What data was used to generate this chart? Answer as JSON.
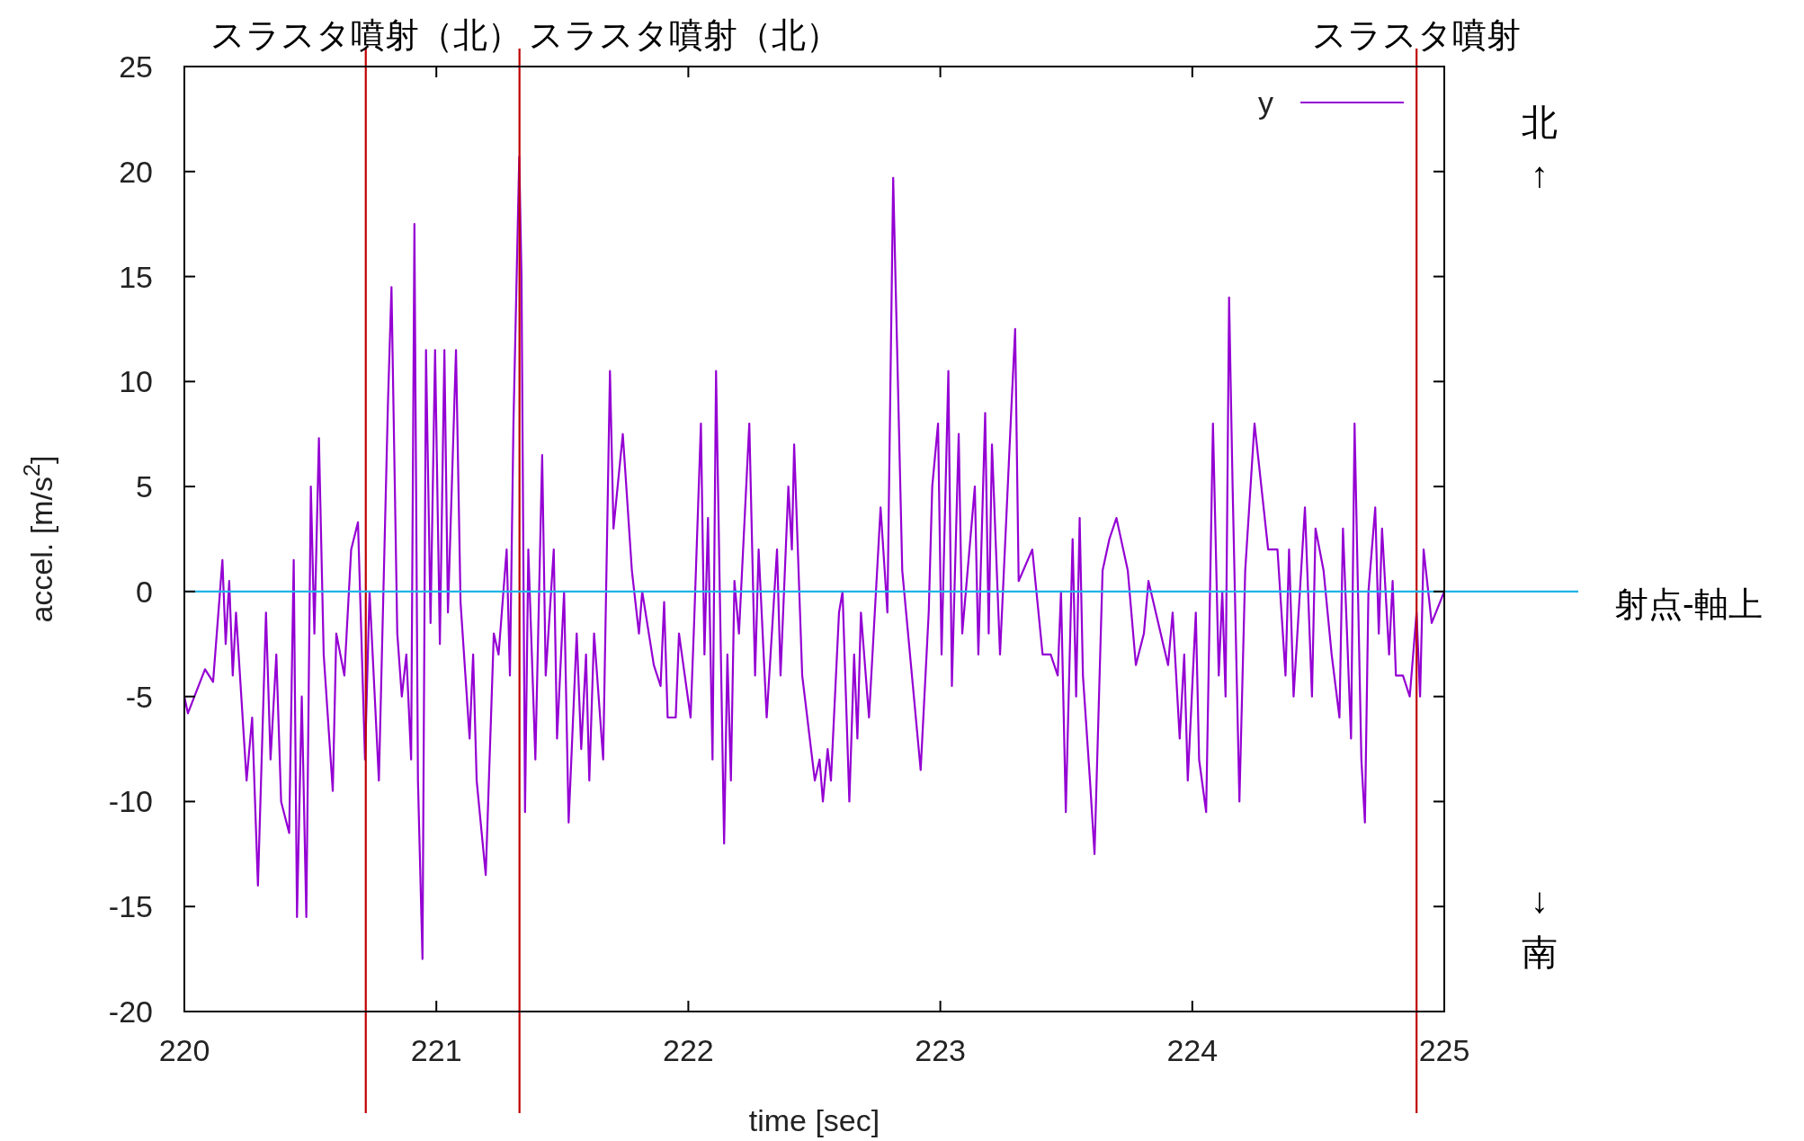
{
  "chart_data": {
    "type": "line",
    "xlabel": "time [sec]",
    "ylabel": "accel. [m/s$^{2}$]",
    "xlim": [
      220,
      225
    ],
    "xticks": [
      220,
      221,
      222,
      223,
      224,
      225
    ],
    "ylim": [
      -20,
      25
    ],
    "yticks": [
      -20,
      -15,
      -10,
      -5,
      0,
      5,
      10,
      15,
      20,
      25
    ],
    "grid": false,
    "legend": "top right",
    "marker": "none",
    "line_style": "solid",
    "series": [
      {
        "name": "y",
        "color": "#9400d3",
        "x": [
          220.0,
          220.014,
          220.082,
          220.114,
          220.151,
          220.164,
          220.178,
          220.192,
          220.205,
          220.247,
          220.269,
          220.292,
          220.324,
          220.342,
          220.365,
          220.384,
          220.416,
          220.434,
          220.447,
          220.466,
          220.484,
          220.502,
          220.516,
          220.534,
          220.553,
          220.589,
          220.603,
          220.635,
          220.662,
          220.689,
          220.717,
          220.735,
          220.772,
          220.808,
          220.822,
          220.845,
          220.863,
          220.881,
          220.9,
          220.913,
          220.927,
          220.945,
          220.959,
          220.977,
          220.995,
          221.014,
          221.032,
          221.046,
          221.078,
          221.096,
          221.132,
          221.146,
          221.16,
          221.196,
          221.228,
          221.247,
          221.279,
          221.292,
          221.306,
          221.329,
          221.338,
          221.352,
          221.365,
          221.393,
          221.42,
          221.434,
          221.466,
          221.479,
          221.507,
          221.525,
          221.557,
          221.575,
          221.594,
          221.607,
          221.626,
          221.662,
          221.689,
          221.703,
          221.74,
          221.776,
          221.804,
          221.817,
          221.863,
          221.89,
          221.904,
          221.918,
          221.95,
          221.963,
          222.009,
          222.023,
          222.05,
          222.064,
          222.078,
          222.096,
          222.11,
          222.142,
          222.155,
          222.169,
          222.183,
          222.201,
          222.242,
          222.265,
          222.279,
          222.311,
          222.352,
          222.366,
          222.397,
          222.411,
          222.42,
          222.452,
          222.502,
          222.521,
          222.534,
          222.553,
          222.566,
          222.598,
          222.612,
          222.639,
          222.658,
          222.671,
          222.685,
          222.717,
          222.763,
          222.79,
          222.813,
          222.822,
          222.849,
          222.922,
          222.954,
          222.968,
          222.991,
          223.005,
          223.032,
          223.046,
          223.073,
          223.087,
          223.137,
          223.151,
          223.178,
          223.192,
          223.205,
          223.237,
          223.283,
          223.297,
          223.311,
          223.365,
          223.406,
          223.438,
          223.466,
          223.479,
          223.498,
          223.525,
          223.539,
          223.553,
          223.566,
          223.594,
          223.612,
          223.644,
          223.671,
          223.699,
          223.744,
          223.776,
          223.808,
          223.826,
          223.904,
          223.922,
          223.95,
          223.968,
          223.982,
          224.014,
          224.027,
          224.055,
          224.082,
          224.105,
          224.119,
          224.132,
          224.146,
          224.16,
          224.187,
          224.21,
          224.247,
          224.301,
          224.338,
          224.37,
          224.384,
          224.402,
          224.447,
          224.475,
          224.489,
          224.521,
          224.553,
          224.584,
          224.598,
          224.63,
          224.644,
          224.671,
          224.685,
          224.699,
          224.726,
          224.74,
          224.753,
          224.781,
          224.795,
          224.808,
          224.836,
          224.863,
          224.89,
          224.904,
          224.918,
          224.95,
          225.0
        ],
        "values": [
          -5,
          -5.8,
          -3.7,
          -4.3,
          1.5,
          -2.5,
          0.5,
          -4,
          -1,
          -9,
          -6,
          -14,
          -1,
          -8,
          -3,
          -10,
          -11.5,
          1.5,
          -15.5,
          -5,
          -15.5,
          5,
          -2,
          7.3,
          -3,
          -9.5,
          -2,
          -4,
          2,
          3.3,
          -8,
          0,
          -9,
          9,
          14.5,
          -2,
          -5,
          -3,
          -8,
          17.5,
          -9,
          -17.5,
          11.5,
          -1.5,
          11.5,
          -2.5,
          11.5,
          -1,
          11.5,
          -0.5,
          -7,
          -3,
          -9,
          -13.5,
          -2,
          -3,
          2,
          -4,
          8,
          20.7,
          15,
          -10.5,
          2,
          -8,
          6.5,
          -4,
          2,
          -7,
          0,
          -11,
          -2,
          -7.5,
          -3,
          -9,
          -2,
          -8,
          10.5,
          3,
          7.5,
          1,
          -2,
          0,
          -3.5,
          -4.5,
          -0.5,
          -6,
          -6,
          -2,
          -6,
          -1.5,
          8,
          -3,
          3.5,
          -8,
          10.5,
          -12,
          -3,
          -9,
          0.5,
          -2,
          8,
          -4,
          2,
          -6,
          2,
          -4,
          5,
          2,
          7,
          -4,
          -9,
          -8,
          -10,
          -7.5,
          -9,
          -1,
          0,
          -10,
          -3,
          -7,
          -1,
          -6,
          4,
          -1,
          19.7,
          15,
          1,
          -8.5,
          -1,
          5,
          8,
          -3,
          10.5,
          -4.5,
          7.5,
          -2,
          5,
          -3,
          8.5,
          -2,
          7,
          -3,
          9,
          12.5,
          0.5,
          2,
          -3,
          -3,
          -4,
          0,
          -10.5,
          2.5,
          -5,
          3.5,
          -4,
          -9,
          -12.5,
          1,
          2.5,
          3.5,
          1,
          -3.5,
          -2,
          0.5,
          -3.5,
          -1,
          -7,
          -3,
          -9,
          -1,
          -8,
          -10.5,
          8,
          -4,
          0,
          -5,
          14,
          5,
          -10,
          1,
          8,
          2,
          2,
          -4,
          2,
          -5,
          4,
          -5,
          3,
          1,
          -3,
          -6,
          3,
          -7,
          8,
          -8,
          -11,
          0,
          4,
          -2,
          3,
          -3,
          0.5,
          -4,
          -4,
          -5,
          -1,
          -5,
          2,
          -1.5,
          0
        ]
      }
    ],
    "ref_lines": [
      {
        "axis": "x",
        "value": 220.72,
        "label": "スラスタ噴射（北）",
        "color": "#c00000"
      },
      {
        "axis": "x",
        "value": 221.33,
        "label": "スラスタ噴射（北）",
        "color": "#c00000"
      },
      {
        "axis": "x",
        "value": 224.89,
        "label": "スラスタ噴射",
        "color": "#c00000"
      },
      {
        "axis": "y",
        "value": 0,
        "label": "射点-軸上",
        "color": "#1fb3e6"
      }
    ],
    "annotations": [
      "北↑",
      "↓南"
    ]
  }
}
